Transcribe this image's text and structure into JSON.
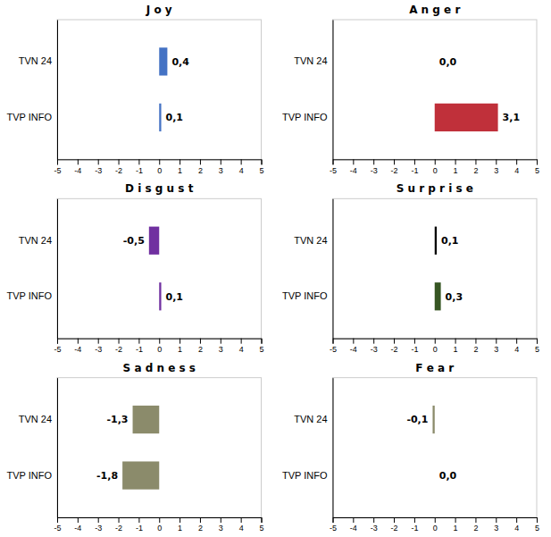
{
  "chart_data": [
    {
      "type": "bar",
      "title": "J o y",
      "orientation": "horizontal",
      "categories": [
        "TVN 24",
        "TVP INFO"
      ],
      "values": [
        0.4,
        0.1
      ],
      "value_labels": [
        "0,4",
        "0,1"
      ],
      "colors": [
        "#4472C4",
        "#4472C4"
      ],
      "data_labels": true,
      "xlim": [
        -5,
        5
      ],
      "xticks": [
        -5,
        -4,
        -3,
        -2,
        -1,
        0,
        1,
        2,
        3,
        4,
        5
      ]
    },
    {
      "type": "bar",
      "title": "A n g e r",
      "orientation": "horizontal",
      "categories": [
        "TVN 24",
        "TVP INFO"
      ],
      "values": [
        0.0,
        3.1
      ],
      "value_labels": [
        "0,0",
        "3,1"
      ],
      "colors": [
        "#000000",
        "#C0303A"
      ],
      "data_labels": true,
      "xlim": [
        -5,
        5
      ],
      "xticks": [
        -5,
        -4,
        -3,
        -2,
        -1,
        0,
        1,
        2,
        3,
        4,
        5
      ]
    },
    {
      "type": "bar",
      "title": "D i s g u s t",
      "orientation": "horizontal",
      "categories": [
        "TVN 24",
        "TVP INFO"
      ],
      "values": [
        -0.5,
        0.1
      ],
      "value_labels": [
        "-0,5",
        "0,1"
      ],
      "colors": [
        "#7030A0",
        "#7030A0"
      ],
      "data_labels": true,
      "xlim": [
        -5,
        5
      ],
      "xticks": [
        -5,
        -4,
        -3,
        -2,
        -1,
        0,
        1,
        2,
        3,
        4,
        5
      ]
    },
    {
      "type": "bar",
      "title": "S u r p r i s e",
      "orientation": "horizontal",
      "categories": [
        "TVN 24",
        "TVP INFO"
      ],
      "values": [
        0.1,
        0.3
      ],
      "value_labels": [
        "0,1",
        "0,3"
      ],
      "colors": [
        "#000000",
        "#375623"
      ],
      "data_labels": true,
      "xlim": [
        -5,
        5
      ],
      "xticks": [
        -5,
        -4,
        -3,
        -2,
        -1,
        0,
        1,
        2,
        3,
        4,
        5
      ]
    },
    {
      "type": "bar",
      "title": "S a d n e s s",
      "orientation": "horizontal",
      "categories": [
        "TVN 24",
        "TVP INFO"
      ],
      "values": [
        -1.3,
        -1.8
      ],
      "value_labels": [
        "-1,3",
        "-1,8"
      ],
      "colors": [
        "#8B8B6B",
        "#8B8B6B"
      ],
      "data_labels": true,
      "xlim": [
        -5,
        5
      ],
      "xticks": [
        -5,
        -4,
        -3,
        -2,
        -1,
        0,
        1,
        2,
        3,
        4,
        5
      ]
    },
    {
      "type": "bar",
      "title": "F e a r",
      "orientation": "horizontal",
      "categories": [
        "TVN 24",
        "TVP INFO"
      ],
      "values": [
        -0.1,
        0.0
      ],
      "value_labels": [
        "-0,1",
        "0,0"
      ],
      "colors": [
        "#8B8B6B",
        "#8B8B6B"
      ],
      "data_labels": true,
      "xlim": [
        -5,
        5
      ],
      "xticks": [
        -5,
        -4,
        -3,
        -2,
        -1,
        0,
        1,
        2,
        3,
        4,
        5
      ]
    }
  ]
}
